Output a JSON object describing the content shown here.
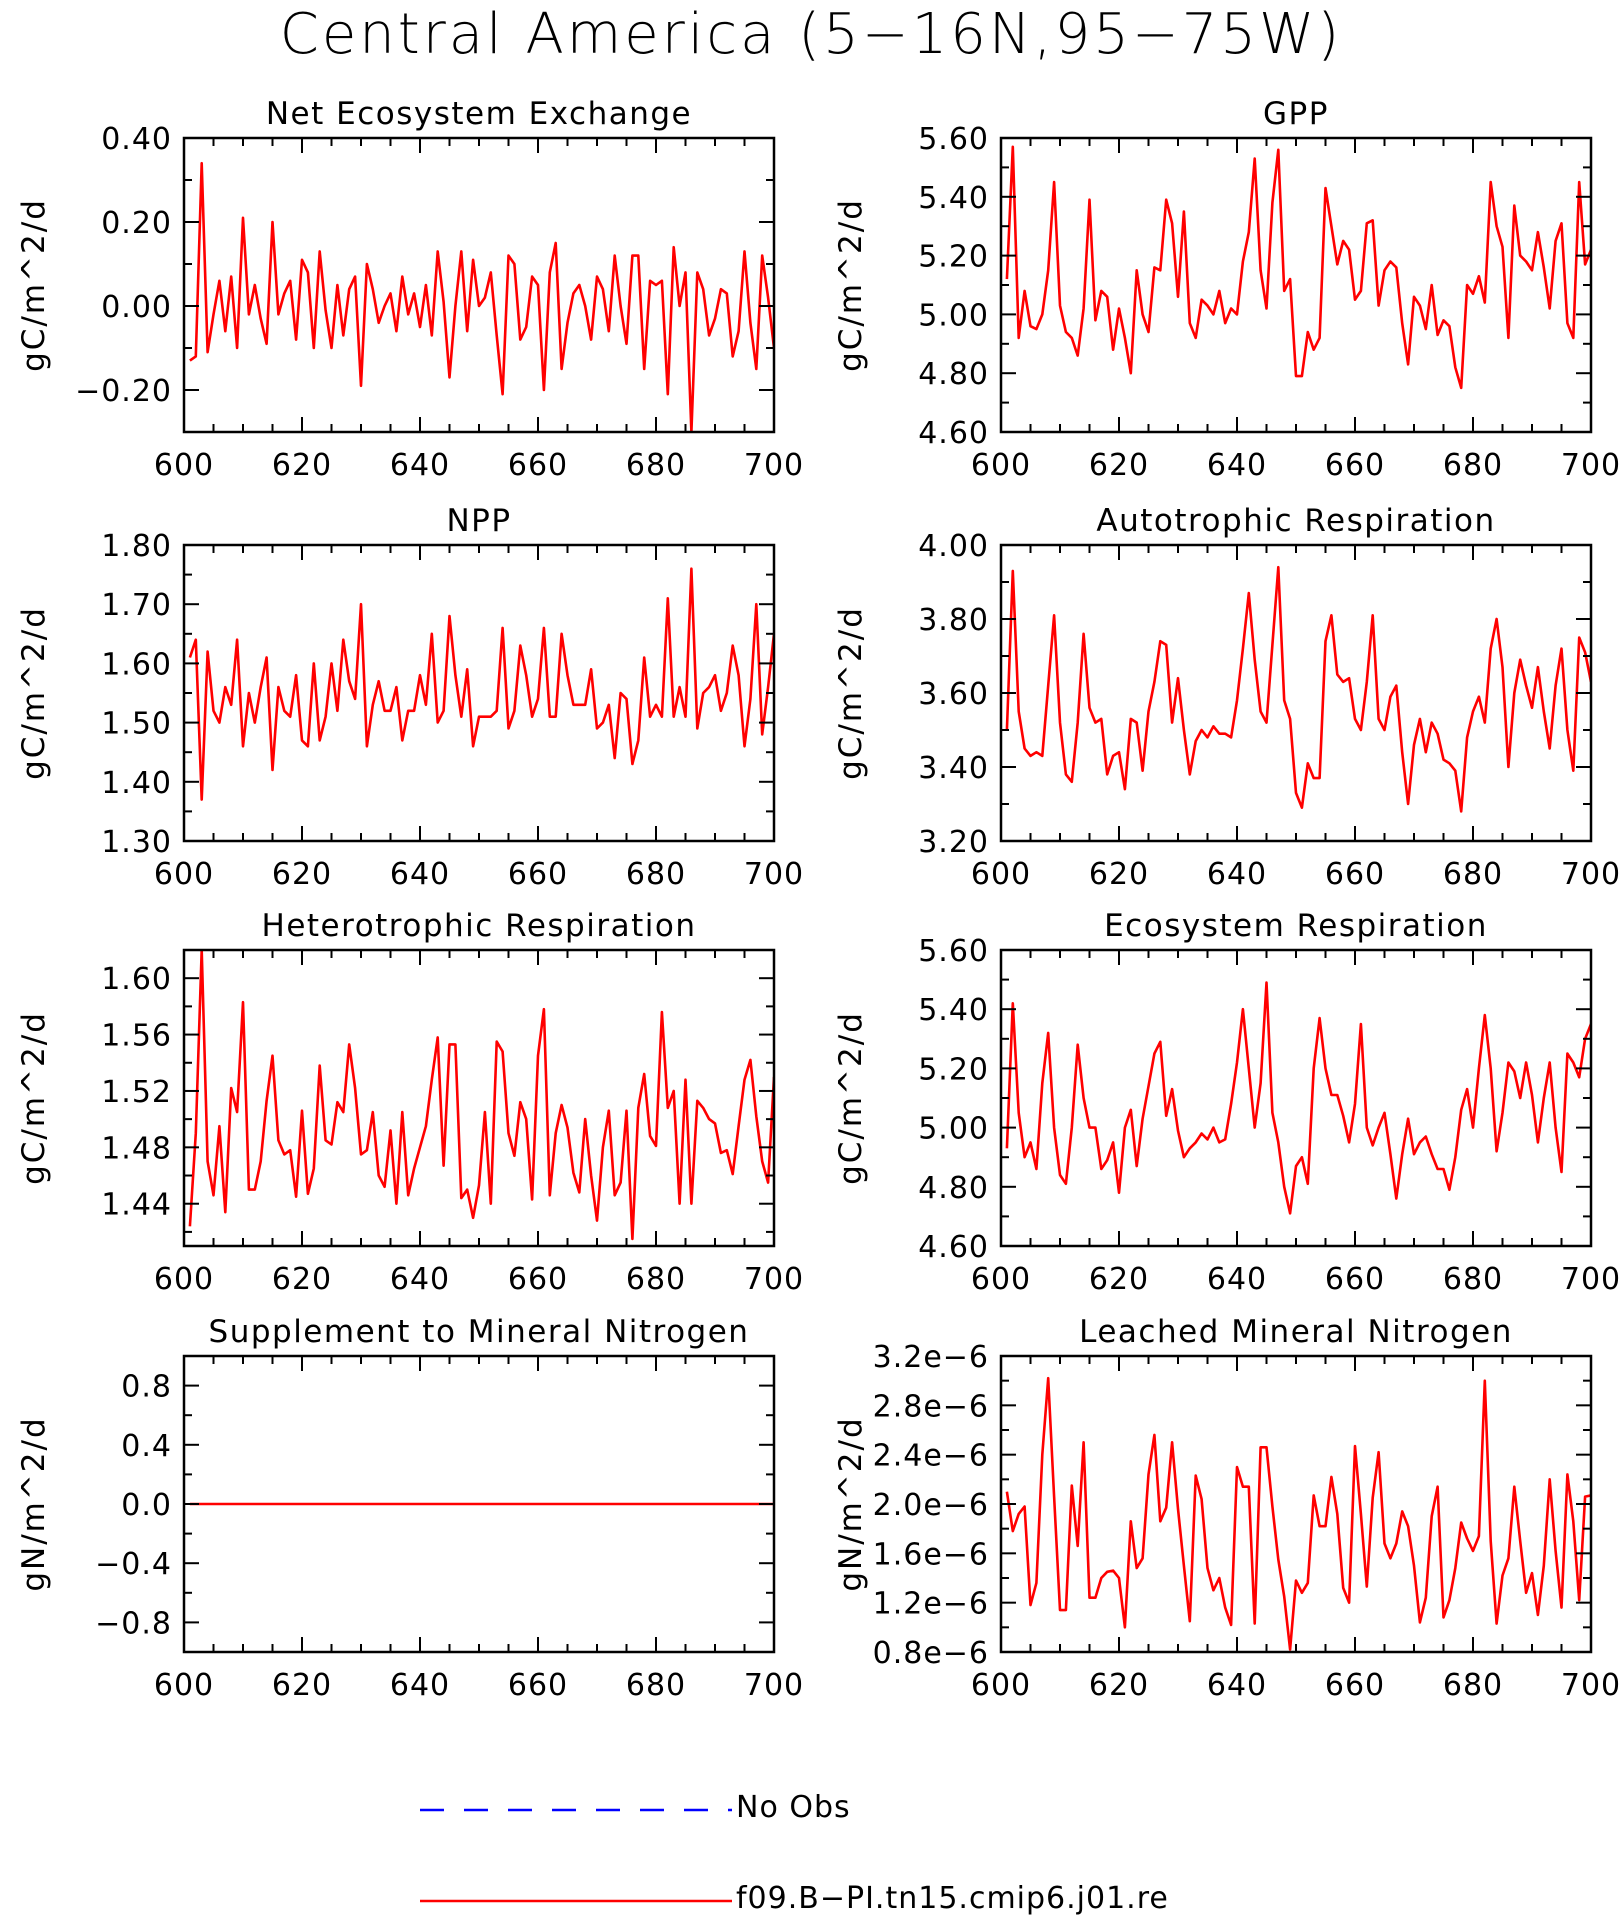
{
  "page_title": "Central America (5−16N,95−75W)",
  "colors": {
    "model": "#ff0000",
    "obs": "#0000ff"
  },
  "legend": {
    "obs_label": "No Obs",
    "model_label": "f09.B−PI.tn15.cmip6.j01.re"
  },
  "chart_data": [
    {
      "type": "line",
      "title": "Net Ecosystem Exchange",
      "ylabel": "gC/m^2/d",
      "xlim": [
        600,
        700
      ],
      "ylim": [
        -0.3,
        0.4
      ],
      "x_ticks": [
        600,
        620,
        640,
        660,
        680,
        700
      ],
      "y_ticks": [
        0.4,
        0.2,
        0.0,
        -0.2
      ],
      "y_tick_labels": [
        "0.40",
        "0.20",
        "0.00",
        "−0.20"
      ],
      "series": [
        {
          "name": "f09.B−PI.tn15.cmip6.j01.re",
          "x_start": 601,
          "x_step": 1,
          "values": [
            -0.13,
            -0.12,
            0.34,
            -0.11,
            -0.02,
            0.06,
            -0.06,
            0.07,
            -0.1,
            0.21,
            -0.02,
            0.05,
            -0.03,
            -0.09,
            0.2,
            -0.02,
            0.03,
            0.06,
            -0.08,
            0.11,
            0.08,
            -0.1,
            0.13,
            -0.01,
            -0.1,
            0.05,
            -0.07,
            0.04,
            0.07,
            -0.19,
            0.1,
            0.04,
            -0.04,
            0.0,
            0.03,
            -0.06,
            0.07,
            -0.02,
            0.03,
            -0.05,
            0.05,
            -0.07,
            0.13,
            0.01,
            -0.17,
            0.0,
            0.13,
            -0.06,
            0.11,
            0.0,
            0.02,
            0.08,
            -0.07,
            -0.21,
            0.12,
            0.1,
            -0.08,
            -0.05,
            0.07,
            0.05,
            -0.2,
            0.08,
            0.15,
            -0.15,
            -0.04,
            0.03,
            0.05,
            0.0,
            -0.08,
            0.07,
            0.04,
            -0.06,
            0.12,
            0.0,
            -0.09,
            0.12,
            0.12,
            -0.15,
            0.06,
            0.05,
            0.06,
            -0.21,
            0.14,
            0.0,
            0.08,
            -0.3,
            0.08,
            0.04,
            -0.07,
            -0.03,
            0.04,
            0.03,
            -0.12,
            -0.06,
            0.13,
            -0.04,
            -0.15,
            0.12,
            0.02,
            -0.1
          ]
        }
      ]
    },
    {
      "type": "line",
      "title": "GPP",
      "ylabel": "gC/m^2/d",
      "xlim": [
        600,
        700
      ],
      "ylim": [
        4.6,
        5.6
      ],
      "x_ticks": [
        600,
        620,
        640,
        660,
        680,
        700
      ],
      "y_ticks": [
        5.6,
        5.4,
        5.2,
        5.0,
        4.8,
        4.6
      ],
      "y_tick_labels": [
        "5.60",
        "5.40",
        "5.20",
        "5.00",
        "4.80",
        "4.60"
      ],
      "series": [
        {
          "name": "f09.B−PI.tn15.cmip6.j01.re",
          "x_start": 601,
          "x_step": 1,
          "values": [
            5.12,
            5.57,
            4.92,
            5.08,
            4.96,
            4.95,
            5.0,
            5.15,
            5.45,
            5.03,
            4.94,
            4.92,
            4.86,
            5.02,
            5.39,
            4.98,
            5.08,
            5.06,
            4.88,
            5.02,
            4.92,
            4.8,
            5.15,
            5.0,
            4.94,
            5.16,
            5.15,
            5.39,
            5.31,
            5.06,
            5.35,
            4.97,
            4.92,
            5.05,
            5.03,
            5.0,
            5.08,
            4.97,
            5.02,
            5.0,
            5.18,
            5.28,
            5.53,
            5.15,
            5.02,
            5.38,
            5.56,
            5.08,
            5.12,
            4.79,
            4.79,
            4.94,
            4.88,
            4.92,
            5.43,
            5.3,
            5.17,
            5.25,
            5.22,
            5.05,
            5.08,
            5.31,
            5.32,
            5.03,
            5.15,
            5.18,
            5.16,
            4.97,
            4.83,
            5.06,
            5.03,
            4.95,
            5.1,
            4.93,
            4.98,
            4.96,
            4.82,
            4.75,
            5.1,
            5.07,
            5.13,
            5.04,
            5.45,
            5.3,
            5.23,
            4.92,
            5.37,
            5.2,
            5.18,
            5.15,
            5.28,
            5.16,
            5.02,
            5.25,
            5.31,
            4.97,
            4.92,
            5.45,
            5.17,
            5.22
          ]
        }
      ]
    },
    {
      "type": "line",
      "title": "NPP",
      "ylabel": "gC/m^2/d",
      "xlim": [
        600,
        700
      ],
      "ylim": [
        1.3,
        1.8
      ],
      "x_ticks": [
        600,
        620,
        640,
        660,
        680,
        700
      ],
      "y_ticks": [
        1.8,
        1.7,
        1.6,
        1.5,
        1.4,
        1.3
      ],
      "y_tick_labels": [
        "1.80",
        "1.70",
        "1.60",
        "1.50",
        "1.40",
        "1.30"
      ],
      "series": [
        {
          "name": "f09.B−PI.tn15.cmip6.j01.re",
          "x_start": 601,
          "x_step": 1,
          "values": [
            1.61,
            1.64,
            1.37,
            1.62,
            1.52,
            1.5,
            1.56,
            1.53,
            1.64,
            1.46,
            1.55,
            1.5,
            1.56,
            1.61,
            1.42,
            1.56,
            1.52,
            1.51,
            1.58,
            1.47,
            1.46,
            1.6,
            1.47,
            1.51,
            1.6,
            1.52,
            1.64,
            1.57,
            1.54,
            1.7,
            1.46,
            1.53,
            1.57,
            1.52,
            1.52,
            1.56,
            1.47,
            1.52,
            1.52,
            1.58,
            1.53,
            1.65,
            1.5,
            1.52,
            1.68,
            1.58,
            1.51,
            1.59,
            1.46,
            1.51,
            1.51,
            1.51,
            1.52,
            1.66,
            1.49,
            1.52,
            1.63,
            1.58,
            1.51,
            1.54,
            1.66,
            1.51,
            1.51,
            1.65,
            1.58,
            1.53,
            1.53,
            1.53,
            1.59,
            1.49,
            1.5,
            1.53,
            1.44,
            1.55,
            1.54,
            1.43,
            1.47,
            1.61,
            1.51,
            1.53,
            1.51,
            1.71,
            1.51,
            1.56,
            1.51,
            1.76,
            1.49,
            1.55,
            1.56,
            1.58,
            1.52,
            1.55,
            1.63,
            1.58,
            1.46,
            1.54,
            1.7,
            1.48,
            1.56,
            1.65
          ]
        }
      ]
    },
    {
      "type": "line",
      "title": "Autotrophic Respiration",
      "ylabel": "gC/m^2/d",
      "xlim": [
        600,
        700
      ],
      "ylim": [
        3.2,
        4.0
      ],
      "x_ticks": [
        600,
        620,
        640,
        660,
        680,
        700
      ],
      "y_ticks": [
        4.0,
        3.8,
        3.6,
        3.4,
        3.2
      ],
      "y_tick_labels": [
        "4.00",
        "3.80",
        "3.60",
        "3.40",
        "3.20"
      ],
      "series": [
        {
          "name": "f09.B−PI.tn15.cmip6.j01.re",
          "x_start": 601,
          "x_step": 1,
          "values": [
            3.5,
            3.93,
            3.55,
            3.45,
            3.43,
            3.44,
            3.43,
            3.62,
            3.81,
            3.52,
            3.38,
            3.36,
            3.52,
            3.76,
            3.56,
            3.52,
            3.53,
            3.38,
            3.43,
            3.44,
            3.34,
            3.53,
            3.52,
            3.39,
            3.55,
            3.63,
            3.74,
            3.73,
            3.52,
            3.64,
            3.5,
            3.38,
            3.47,
            3.5,
            3.48,
            3.51,
            3.49,
            3.49,
            3.48,
            3.58,
            3.72,
            3.87,
            3.69,
            3.55,
            3.52,
            3.73,
            3.94,
            3.58,
            3.53,
            3.33,
            3.29,
            3.41,
            3.37,
            3.37,
            3.74,
            3.81,
            3.65,
            3.63,
            3.64,
            3.53,
            3.5,
            3.63,
            3.81,
            3.53,
            3.5,
            3.59,
            3.62,
            3.44,
            3.3,
            3.46,
            3.53,
            3.44,
            3.52,
            3.49,
            3.42,
            3.41,
            3.39,
            3.28,
            3.48,
            3.55,
            3.59,
            3.52,
            3.72,
            3.8,
            3.67,
            3.4,
            3.6,
            3.69,
            3.62,
            3.56,
            3.67,
            3.55,
            3.45,
            3.62,
            3.72,
            3.5,
            3.39,
            3.75,
            3.71,
            3.63
          ]
        }
      ]
    },
    {
      "type": "line",
      "title": "Heterotrophic Respiration",
      "ylabel": "gC/m^2/d",
      "xlim": [
        600,
        700
      ],
      "ylim": [
        1.41,
        1.62
      ],
      "x_ticks": [
        600,
        620,
        640,
        660,
        680,
        700
      ],
      "y_ticks": [
        1.6,
        1.56,
        1.52,
        1.48,
        1.44
      ],
      "y_tick_labels": [
        "1.60",
        "1.56",
        "1.52",
        "1.48",
        "1.44"
      ],
      "series": [
        {
          "name": "f09.B−PI.tn15.cmip6.j01.re",
          "x_start": 601,
          "x_step": 1,
          "values": [
            1.424,
            1.49,
            1.62,
            1.47,
            1.446,
            1.495,
            1.434,
            1.522,
            1.505,
            1.583,
            1.45,
            1.45,
            1.47,
            1.513,
            1.545,
            1.485,
            1.475,
            1.478,
            1.445,
            1.506,
            1.447,
            1.465,
            1.538,
            1.485,
            1.482,
            1.512,
            1.505,
            1.553,
            1.522,
            1.475,
            1.478,
            1.505,
            1.46,
            1.452,
            1.492,
            1.44,
            1.505,
            1.446,
            1.465,
            1.48,
            1.495,
            1.528,
            1.558,
            1.467,
            1.553,
            1.553,
            1.444,
            1.45,
            1.43,
            1.453,
            1.505,
            1.44,
            1.555,
            1.548,
            1.49,
            1.474,
            1.512,
            1.5,
            1.443,
            1.545,
            1.578,
            1.446,
            1.49,
            1.51,
            1.494,
            1.462,
            1.448,
            1.5,
            1.46,
            1.428,
            1.48,
            1.506,
            1.446,
            1.455,
            1.506,
            1.415,
            1.508,
            1.532,
            1.488,
            1.481,
            1.576,
            1.508,
            1.52,
            1.44,
            1.528,
            1.44,
            1.513,
            1.508,
            1.5,
            1.497,
            1.476,
            1.478,
            1.461,
            1.495,
            1.528,
            1.542,
            1.502,
            1.47,
            1.455,
            1.53
          ]
        }
      ]
    },
    {
      "type": "line",
      "title": "Ecosystem Respiration",
      "ylabel": "gC/m^2/d",
      "xlim": [
        600,
        700
      ],
      "ylim": [
        4.6,
        5.6
      ],
      "x_ticks": [
        600,
        620,
        640,
        660,
        680,
        700
      ],
      "y_ticks": [
        5.6,
        5.4,
        5.2,
        5.0,
        4.8,
        4.6
      ],
      "y_tick_labels": [
        "5.60",
        "5.40",
        "5.20",
        "5.00",
        "4.80",
        "4.60"
      ],
      "series": [
        {
          "name": "f09.B−PI.tn15.cmip6.j01.re",
          "x_start": 601,
          "x_step": 1,
          "values": [
            4.93,
            5.42,
            5.05,
            4.9,
            4.95,
            4.86,
            5.15,
            5.32,
            5.0,
            4.84,
            4.81,
            5.0,
            5.28,
            5.1,
            5.0,
            5.0,
            4.86,
            4.89,
            4.95,
            4.78,
            5.0,
            5.06,
            4.87,
            5.03,
            5.14,
            5.25,
            5.29,
            5.04,
            5.13,
            4.99,
            4.9,
            4.93,
            4.95,
            4.98,
            4.96,
            5.0,
            4.95,
            4.96,
            5.08,
            5.22,
            5.4,
            5.2,
            5.0,
            5.15,
            5.49,
            5.05,
            4.95,
            4.8,
            4.71,
            4.87,
            4.9,
            4.81,
            5.2,
            5.37,
            5.2,
            5.11,
            5.11,
            5.04,
            4.95,
            5.08,
            5.35,
            5.0,
            4.94,
            5.0,
            5.05,
            4.91,
            4.76,
            4.91,
            5.03,
            4.91,
            4.95,
            4.97,
            4.91,
            4.86,
            4.86,
            4.79,
            4.9,
            5.06,
            5.13,
            5.0,
            5.2,
            5.38,
            5.2,
            4.92,
            5.05,
            5.22,
            5.19,
            5.1,
            5.22,
            5.11,
            4.95,
            5.1,
            5.22,
            5.0,
            4.85,
            5.25,
            5.22,
            5.17,
            5.3,
            5.35
          ]
        }
      ]
    },
    {
      "type": "line",
      "title": "Supplement to Mineral Nitrogen",
      "ylabel": "gN/m^2/d",
      "xlim": [
        600,
        700
      ],
      "ylim": [
        -1.0,
        1.0
      ],
      "x_ticks": [
        600,
        620,
        640,
        660,
        680,
        700
      ],
      "y_ticks": [
        0.8,
        0.4,
        0.0,
        -0.4,
        -0.8
      ],
      "y_tick_labels": [
        "0.8",
        "0.4",
        "0.0",
        "−0.4",
        "−0.8"
      ],
      "series": [
        {
          "name": "f09.B−PI.tn15.cmip6.j01.re",
          "x": [
            601,
            700
          ],
          "values": [
            0.0,
            0.0
          ]
        }
      ]
    },
    {
      "type": "line",
      "title": "Leached Mineral Nitrogen",
      "ylabel": "gN/m^2/d",
      "xlim": [
        600,
        700
      ],
      "ylim": [
        8e-07,
        3.2e-06
      ],
      "x_ticks": [
        600,
        620,
        640,
        660,
        680,
        700
      ],
      "y_ticks": [
        3.2e-06,
        2.8e-06,
        2.4e-06,
        2e-06,
        1.6e-06,
        1.2e-06,
        8e-07
      ],
      "y_tick_labels": [
        "3.2e−6",
        "2.8e−6",
        "2.4e−6",
        "2.0e−6",
        "1.6e−6",
        "1.2e−6",
        "0.8e−6"
      ],
      "series": [
        {
          "name": "f09.B−PI.tn15.cmip6.j01.re",
          "x_start": 601,
          "x_step": 1,
          "values": [
            2.1e-06,
            1.78e-06,
            1.92e-06,
            1.98e-06,
            1.18e-06,
            1.36e-06,
            2.4e-06,
            3.02e-06,
            2.06e-06,
            1.14e-06,
            1.14e-06,
            2.15e-06,
            1.66e-06,
            2.5e-06,
            1.24e-06,
            1.24e-06,
            1.4e-06,
            1.45e-06,
            1.46e-06,
            1.4e-06,
            1e-06,
            1.86e-06,
            1.48e-06,
            1.56e-06,
            2.24e-06,
            2.56e-06,
            1.86e-06,
            1.97e-06,
            2.5e-06,
            1.96e-06,
            1.5e-06,
            1.05e-06,
            2.23e-06,
            2.04e-06,
            1.48e-06,
            1.3e-06,
            1.4e-06,
            1.16e-06,
            1.02e-06,
            2.3e-06,
            2.14e-06,
            2.14e-06,
            1.03e-06,
            2.46e-06,
            2.46e-06,
            1.98e-06,
            1.55e-06,
            1.25e-06,
            8.2e-07,
            1.38e-06,
            1.28e-06,
            1.36e-06,
            2.07e-06,
            1.82e-06,
            1.82e-06,
            2.22e-06,
            1.92e-06,
            1.32e-06,
            1.2e-06,
            2.47e-06,
            1.92e-06,
            1.33e-06,
            2.05e-06,
            2.42e-06,
            1.68e-06,
            1.56e-06,
            1.68e-06,
            1.94e-06,
            1.82e-06,
            1.5e-06,
            1.04e-06,
            1.24e-06,
            1.9e-06,
            2.14e-06,
            1.08e-06,
            1.22e-06,
            1.48e-06,
            1.85e-06,
            1.72e-06,
            1.62e-06,
            1.74e-06,
            3e-06,
            1.7e-06,
            1.03e-06,
            1.42e-06,
            1.56e-06,
            2.14e-06,
            1.7e-06,
            1.28e-06,
            1.44e-06,
            1.1e-06,
            1.5e-06,
            2.2e-06,
            1.62e-06,
            1.16e-06,
            2.24e-06,
            1.86e-06,
            1.22e-06,
            2.06e-06,
            2.07e-06
          ]
        }
      ]
    }
  ]
}
